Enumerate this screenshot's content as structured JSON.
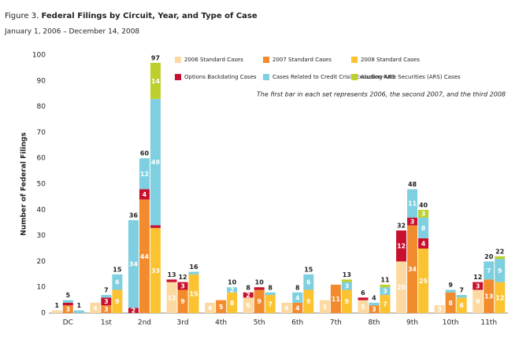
{
  "chart_data": {
    "type": "stacked-grouped-bar",
    "label": "Figure 3.",
    "title": "Federal Filings by Circuit, Year, and Type of Case",
    "subtitle": "January 1, 2006 – December 14, 2008",
    "ylabel": "Number of Federal Filings",
    "note": "The first bar in each set represents 2006, the second 2007, and the third 2008",
    "ylim": [
      0,
      100
    ],
    "yticks": [
      0,
      10,
      20,
      30,
      40,
      50,
      60,
      70,
      80,
      90,
      100
    ],
    "categories": [
      "DC",
      "1st",
      "2nd",
      "3rd",
      "4th",
      "5th",
      "6th",
      "7th",
      "8th",
      "9th",
      "10th",
      "11th"
    ],
    "series": [
      {
        "name": "2006 Standard Cases",
        "color": "#fcd9a0",
        "bar": 0,
        "values": [
          1,
          4,
          null,
          12,
          4,
          6,
          4,
          5,
          5,
          20,
          3,
          9
        ]
      },
      {
        "name": "2007 Standard Cases",
        "color": "#f28a2e",
        "bar": 1,
        "values": [
          3,
          3,
          44,
          9,
          5,
          9,
          4,
          11,
          3,
          34,
          8,
          13
        ]
      },
      {
        "name": "2008 Standard Cases",
        "color": "#fcc331",
        "bar": 2,
        "values": [
          null,
          9,
          33,
          15,
          8,
          7,
          9,
          9,
          7,
          25,
          6,
          12
        ]
      },
      {
        "name": "Options Backdating Cases",
        "color": "#c8102e",
        "values": [
          [
            null,
            1,
            null
          ],
          [
            null,
            3,
            null
          ],
          [
            2,
            4,
            1
          ],
          [
            1,
            3,
            null
          ],
          [
            null,
            null,
            null
          ],
          [
            2,
            1,
            null
          ],
          [
            null,
            null,
            null
          ],
          [
            null,
            null,
            null
          ],
          [
            1,
            null,
            null
          ],
          [
            12,
            3,
            4
          ],
          [
            null,
            null,
            null
          ],
          [
            3,
            null,
            null
          ]
        ]
      },
      {
        "name": "Cases Related to Credit Crisis Excluding ARS",
        "color": "#7ecfe0",
        "values": [
          [
            null,
            1,
            1
          ],
          [
            null,
            1,
            6
          ],
          [
            34,
            12,
            49
          ],
          [
            null,
            null,
            1
          ],
          [
            null,
            null,
            2
          ],
          [
            null,
            null,
            1
          ],
          [
            null,
            4,
            6
          ],
          [
            null,
            null,
            3
          ],
          [
            null,
            1,
            3
          ],
          [
            null,
            11,
            8
          ],
          [
            null,
            1,
            1
          ],
          [
            null,
            7,
            9
          ]
        ]
      },
      {
        "name": "Auction-Rate Securities (ARS) Cases",
        "color": "#bccf2c",
        "values": [
          [
            null,
            null,
            null
          ],
          [
            null,
            null,
            null
          ],
          [
            null,
            null,
            14
          ],
          [
            null,
            null,
            null
          ],
          [
            null,
            null,
            null
          ],
          [
            null,
            null,
            null
          ],
          [
            null,
            null,
            null
          ],
          [
            null,
            null,
            1
          ],
          [
            null,
            null,
            1
          ],
          [
            null,
            null,
            3
          ],
          [
            null,
            null,
            null
          ],
          [
            null,
            null,
            1
          ]
        ]
      }
    ],
    "totals": [
      [
        1,
        5,
        1
      ],
      [
        null,
        7,
        15
      ],
      [
        36,
        60,
        97
      ],
      [
        13,
        12,
        16
      ],
      [
        null,
        null,
        10
      ],
      [
        8,
        10,
        8
      ],
      [
        null,
        8,
        15
      ],
      [
        null,
        null,
        13
      ],
      [
        6,
        4,
        11
      ],
      [
        32,
        48,
        40
      ],
      [
        null,
        9,
        7
      ],
      [
        12,
        20,
        22
      ]
    ]
  }
}
